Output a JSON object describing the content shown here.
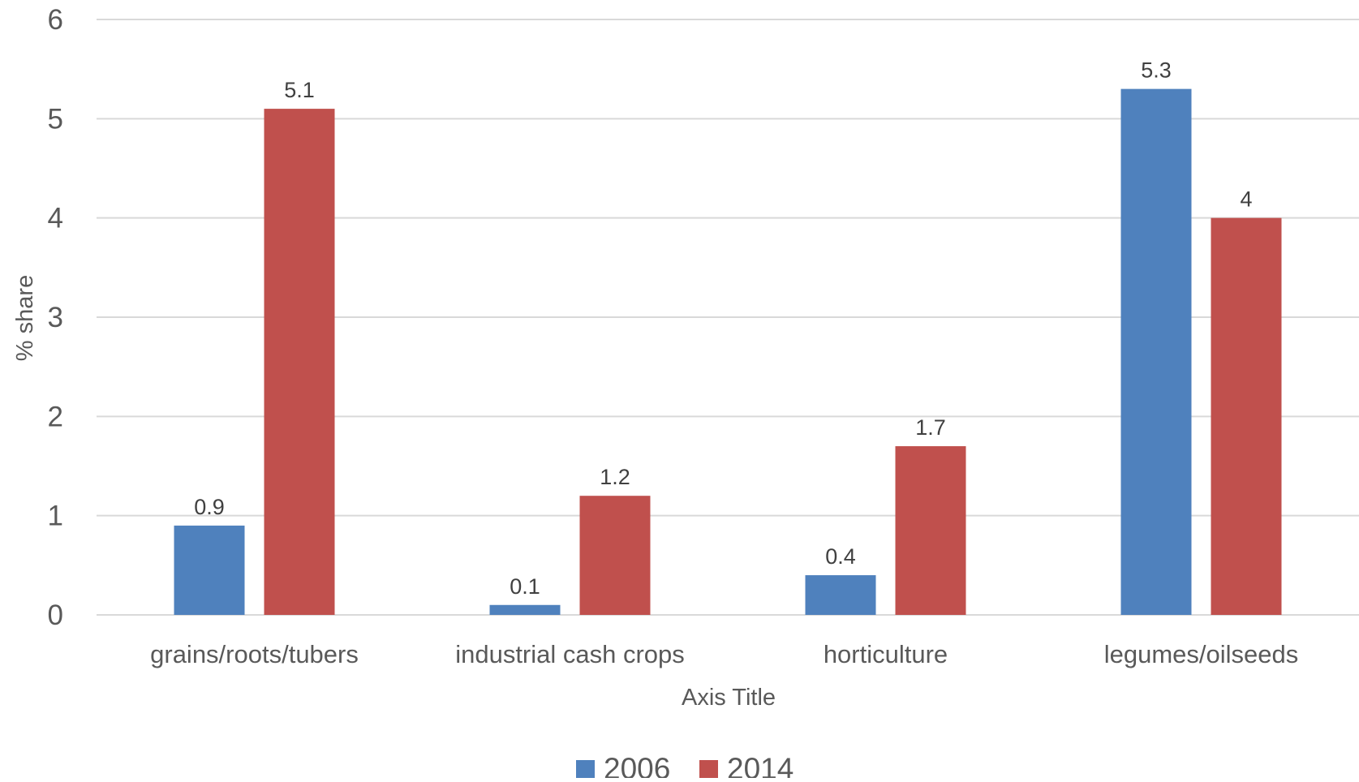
{
  "chart_data": {
    "type": "bar",
    "title": "",
    "xlabel": "Axis Title",
    "ylabel": "% share",
    "categories": [
      "grains/roots/tubers",
      "industrial cash crops",
      "horticulture",
      "legumes/oilseeds"
    ],
    "series": [
      {
        "name": "2006",
        "color": "#4F81BD",
        "values": [
          0.9,
          0.1,
          0.4,
          5.3
        ],
        "labels": [
          "0.9",
          "0.1",
          "0.4",
          "5.3"
        ]
      },
      {
        "name": "2014",
        "color": "#C0504D",
        "values": [
          5.1,
          1.2,
          1.7,
          4.0
        ],
        "labels": [
          "5.1",
          "1.2",
          "1.7",
          "4"
        ]
      }
    ],
    "ylim": [
      0,
      6
    ],
    "yticks": [
      "0",
      "1",
      "2",
      "3",
      "4",
      "5",
      "6"
    ],
    "grid": true,
    "legend": "bottom-center"
  }
}
